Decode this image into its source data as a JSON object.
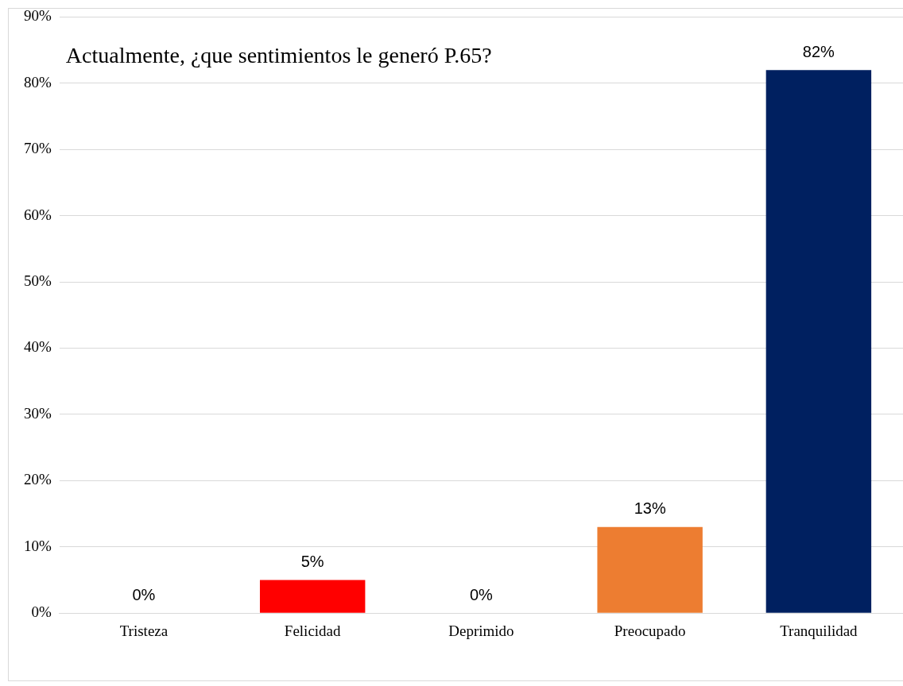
{
  "chart_data": {
    "type": "bar",
    "title": "Actualmente, ¿que sentimientos le generó P.65?",
    "categories": [
      "Tristeza",
      "Felicidad",
      "Deprimido",
      "Preocupado",
      "Tranquilidad"
    ],
    "values": [
      0,
      5,
      0,
      13,
      82
    ],
    "colors": [
      "#4472c4",
      "#ff0000",
      "#a5a5a5",
      "#ed7d31",
      "#002060"
    ],
    "value_labels": [
      "0%",
      "5%",
      "0%",
      "13%",
      "82%"
    ],
    "ylim": [
      0,
      90
    ],
    "yticks": [
      {
        "value": 0,
        "label": "0%"
      },
      {
        "value": 10,
        "label": "10%"
      },
      {
        "value": 20,
        "label": "20%"
      },
      {
        "value": 30,
        "label": "30%"
      },
      {
        "value": 40,
        "label": "40%"
      },
      {
        "value": 50,
        "label": "50%"
      },
      {
        "value": 60,
        "label": "60%"
      },
      {
        "value": 70,
        "label": "70%"
      },
      {
        "value": 80,
        "label": "80%"
      },
      {
        "value": 90,
        "label": "90%"
      }
    ],
    "grid": "y",
    "legend": false
  }
}
